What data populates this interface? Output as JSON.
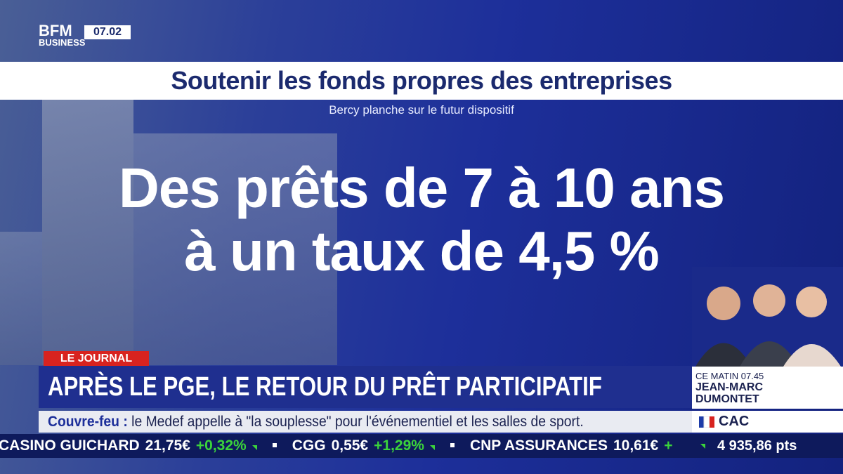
{
  "header": {
    "logo": "BFM",
    "logo_sub": "BUSINESS",
    "time": "07.02"
  },
  "headline": {
    "title": "Soutenir les fonds propres des entreprises",
    "subtitle": "Bercy planche sur le futur dispositif"
  },
  "main_text": {
    "lines": [
      "Des prêts de 7 à 10 ans",
      "à un taux de 4,5 %"
    ]
  },
  "segment": {
    "tag": "LE JOURNAL",
    "title": "APRÈS LE PGE, LE RETOUR DU PRÊT PARTICIPATIF"
  },
  "ticker": {
    "label": "Couvre-feu :",
    "text": "le Medef appelle à \"la souplesse\" pour l'événementiel et les salles de sport."
  },
  "stocks": [
    {
      "name": "CASINO GUICHARD",
      "price": "21,75€",
      "change": "+0,32%"
    },
    {
      "name": "CGG",
      "price": "0,55€",
      "change": "+1,29%"
    },
    {
      "name": "CNP ASSURANCES",
      "price": "10,61€",
      "change": "+"
    }
  ],
  "guest_box": {
    "program": "CE MATIN 07.45",
    "name_lines": [
      "JEAN-MARC",
      "DUMONTET"
    ]
  },
  "index": {
    "name": "CAC",
    "value": "4 935,86 pts"
  }
}
